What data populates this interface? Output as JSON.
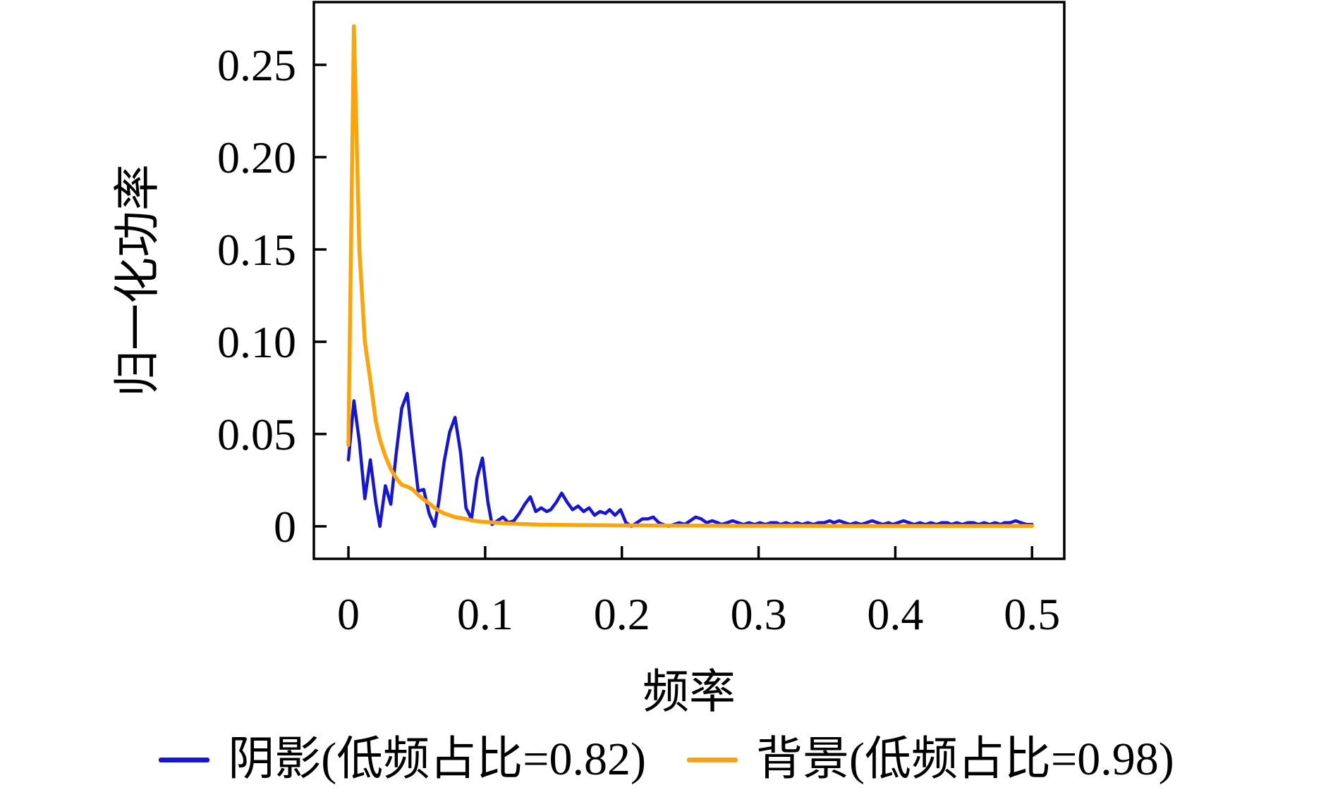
{
  "figure": {
    "background": "#ffffff",
    "axis_color": "#000000"
  },
  "chart_data": {
    "type": "line",
    "title": "",
    "xlabel": "频率",
    "ylabel": "归一化功率",
    "xlim": [
      -0.0253,
      0.5236
    ],
    "ylim": [
      -0.0176,
      0.284
    ],
    "grid": false,
    "legend_position": "below-figure",
    "xticks": {
      "values": [
        0,
        0.1,
        0.2,
        0.3,
        0.4,
        0.5
      ],
      "labels": [
        "0",
        "0.1",
        "0.2",
        "0.3",
        "0.4",
        "0.5"
      ]
    },
    "yticks": {
      "values": [
        0,
        0.05,
        0.1,
        0.15,
        0.2,
        0.25
      ],
      "labels": [
        "0",
        "0.05",
        "0.10",
        "0.15",
        "0.20",
        "0.25"
      ]
    },
    "series": [
      {
        "name": "阴影",
        "legend_label": "阴影(低频占比=0.82)",
        "low_freq_ratio": 0.82,
        "color": "#1414dd",
        "line_width": 4.5,
        "x": [
          0.0,
          0.004,
          0.008,
          0.012,
          0.016,
          0.02,
          0.023,
          0.027,
          0.031,
          0.035,
          0.039,
          0.043,
          0.047,
          0.051,
          0.055,
          0.059,
          0.063,
          0.066,
          0.07,
          0.074,
          0.078,
          0.082,
          0.086,
          0.09,
          0.094,
          0.098,
          0.102,
          0.105,
          0.109,
          0.113,
          0.117,
          0.121,
          0.125,
          0.129,
          0.133,
          0.137,
          0.141,
          0.145,
          0.148,
          0.152,
          0.156,
          0.16,
          0.164,
          0.168,
          0.172,
          0.176,
          0.18,
          0.184,
          0.188,
          0.191,
          0.195,
          0.199,
          0.203,
          0.207,
          0.211,
          0.215,
          0.219,
          0.223,
          0.227,
          0.23,
          0.234,
          0.238,
          0.242,
          0.246,
          0.25,
          0.254,
          0.258,
          0.262,
          0.266,
          0.27,
          0.273,
          0.277,
          0.281,
          0.285,
          0.289,
          0.293,
          0.297,
          0.301,
          0.305,
          0.309,
          0.313,
          0.316,
          0.32,
          0.324,
          0.328,
          0.332,
          0.336,
          0.34,
          0.344,
          0.348,
          0.352,
          0.355,
          0.359,
          0.363,
          0.367,
          0.371,
          0.375,
          0.379,
          0.383,
          0.387,
          0.391,
          0.395,
          0.398,
          0.402,
          0.406,
          0.41,
          0.414,
          0.418,
          0.422,
          0.426,
          0.43,
          0.434,
          0.438,
          0.441,
          0.445,
          0.449,
          0.453,
          0.457,
          0.461,
          0.465,
          0.469,
          0.473,
          0.477,
          0.48,
          0.484,
          0.488,
          0.492,
          0.496,
          0.5
        ],
        "values": [
          0.036,
          0.068,
          0.046,
          0.015,
          0.036,
          0.013,
          0.0,
          0.022,
          0.012,
          0.04,
          0.064,
          0.072,
          0.045,
          0.019,
          0.02,
          0.007,
          0.0,
          0.013,
          0.035,
          0.051,
          0.059,
          0.04,
          0.01,
          0.004,
          0.026,
          0.037,
          0.013,
          0.001,
          0.003,
          0.005,
          0.002,
          0.003,
          0.007,
          0.012,
          0.016,
          0.008,
          0.01,
          0.008,
          0.009,
          0.013,
          0.018,
          0.013,
          0.009,
          0.011,
          0.008,
          0.01,
          0.006,
          0.008,
          0.007,
          0.009,
          0.006,
          0.009,
          0.002,
          0.0,
          0.002,
          0.004,
          0.004,
          0.005,
          0.002,
          0.001,
          0.0,
          0.001,
          0.002,
          0.001,
          0.003,
          0.005,
          0.004,
          0.002,
          0.003,
          0.002,
          0.001,
          0.002,
          0.003,
          0.002,
          0.001,
          0.002,
          0.001,
          0.002,
          0.001,
          0.002,
          0.002,
          0.001,
          0.002,
          0.001,
          0.002,
          0.001,
          0.002,
          0.001,
          0.002,
          0.002,
          0.003,
          0.002,
          0.003,
          0.002,
          0.001,
          0.002,
          0.001,
          0.002,
          0.003,
          0.002,
          0.001,
          0.002,
          0.001,
          0.002,
          0.003,
          0.002,
          0.001,
          0.002,
          0.001,
          0.002,
          0.001,
          0.002,
          0.002,
          0.001,
          0.002,
          0.001,
          0.002,
          0.002,
          0.001,
          0.002,
          0.001,
          0.002,
          0.001,
          0.002,
          0.002,
          0.003,
          0.002,
          0.001,
          0.001
        ]
      },
      {
        "name": "背景",
        "legend_label": "背景(低频占比=0.98)",
        "low_freq_ratio": 0.98,
        "color": "#ffa408",
        "line_width": 5.5,
        "x": [
          0.0,
          0.004,
          0.008,
          0.012,
          0.016,
          0.02,
          0.023,
          0.027,
          0.031,
          0.035,
          0.039,
          0.043,
          0.047,
          0.051,
          0.055,
          0.059,
          0.063,
          0.066,
          0.07,
          0.074,
          0.078,
          0.082,
          0.086,
          0.09,
          0.094,
          0.098,
          0.105,
          0.113,
          0.121,
          0.129,
          0.137,
          0.152,
          0.168,
          0.184,
          0.199,
          0.215,
          0.234,
          0.258,
          0.281,
          0.305,
          0.328,
          0.352,
          0.375,
          0.398,
          0.422,
          0.445,
          0.469,
          0.484,
          0.5
        ],
        "values": [
          0.044,
          0.271,
          0.15,
          0.1,
          0.079,
          0.057,
          0.047,
          0.038,
          0.031,
          0.026,
          0.0225,
          0.0215,
          0.02,
          0.017,
          0.0145,
          0.0125,
          0.01,
          0.0085,
          0.007,
          0.006,
          0.005,
          0.0045,
          0.004,
          0.0033,
          0.0028,
          0.0025,
          0.0021,
          0.0017,
          0.0014,
          0.0012,
          0.001,
          0.0008,
          0.0007,
          0.0006,
          0.0005,
          0.0005,
          0.0004,
          0.0004,
          0.0003,
          0.0003,
          0.0003,
          0.0002,
          0.0002,
          0.0002,
          0.0002,
          0.0002,
          0.0002,
          0.0002,
          0.0002
        ]
      }
    ]
  }
}
